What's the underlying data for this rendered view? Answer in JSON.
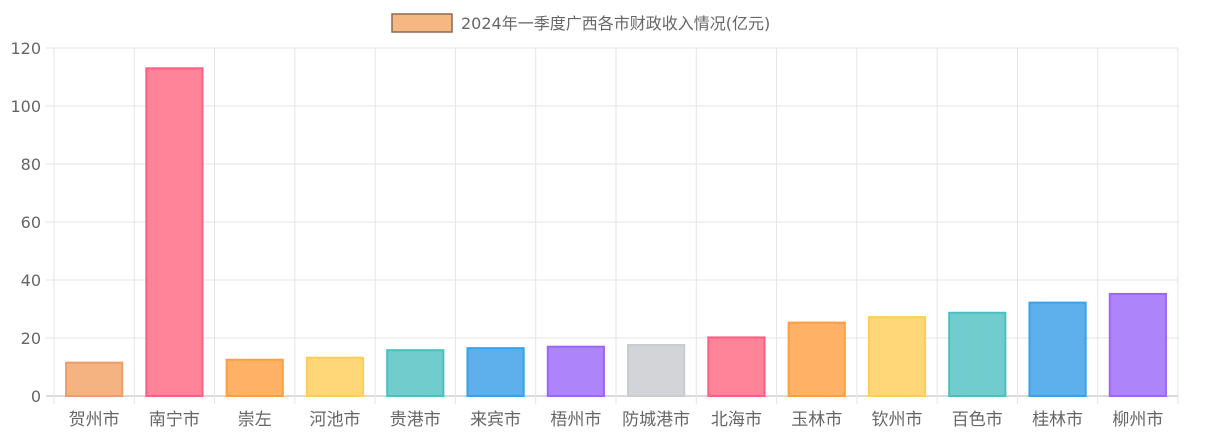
{
  "chart_data": {
    "type": "bar",
    "legend_position": "top",
    "grid": true,
    "categories": [
      "贺州市",
      "南宁市",
      "崇左",
      "河池市",
      "贵港市",
      "来宾市",
      "梧州市",
      "防城港市",
      "北海市",
      "玉林市",
      "钦州市",
      "百色市",
      "桂林市",
      "柳州市"
    ],
    "series": [
      {
        "name": "2024年一季度广西各市财政收入情况(亿元)",
        "values": [
          11.5,
          113,
          12.5,
          13.2,
          15.8,
          16.5,
          17,
          17.6,
          20.2,
          25.3,
          27.2,
          28.7,
          32.2,
          35.2
        ]
      }
    ],
    "colors": [
      "#f5b382",
      "#ff8499",
      "#ffb265",
      "#ffd778",
      "#70cccd",
      "#5eb0ed",
      "#ad84fa",
      "#d3d4d7",
      "#ff8499",
      "#ffb265",
      "#ffd778",
      "#70cccd",
      "#5eb0ed",
      "#ad84fa"
    ],
    "borders": [
      "#ee9c6b",
      "#ff5e82",
      "#ff9d3f",
      "#ffcd56",
      "#4bc0c0",
      "#36a2eb",
      "#9966ff",
      "#c9cbcf",
      "#ff5e82",
      "#ff9d3f",
      "#ffcd56",
      "#4bc0c0",
      "#36a2eb",
      "#9966ff"
    ],
    "legend_color": "#f5b882",
    "legend_border": "#8c6a52",
    "yticks": [
      0,
      20,
      40,
      60,
      80,
      100,
      120
    ],
    "ylim": [
      0,
      120
    ]
  }
}
